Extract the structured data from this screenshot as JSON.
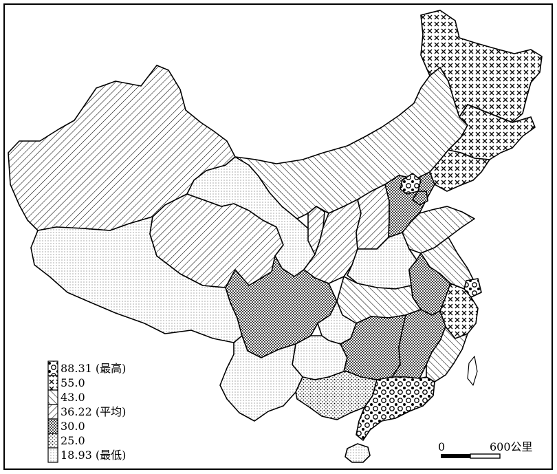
{
  "legend": {
    "items": [
      {
        "value": "88.31",
        "note": "(最高)",
        "pattern": "circles"
      },
      {
        "value": "55.0",
        "note": "",
        "pattern": "cross"
      },
      {
        "value": "43.0",
        "note": "",
        "pattern": "hatch-right"
      },
      {
        "value": "36.22",
        "note": "(平均)",
        "pattern": "hatch-left"
      },
      {
        "value": "30.0",
        "note": "",
        "pattern": "dots-dense"
      },
      {
        "value": "25.0",
        "note": "",
        "pattern": "dots-medium"
      },
      {
        "value": "18.93",
        "note": "(最低)",
        "pattern": "dots-light"
      }
    ]
  },
  "scale_bar": {
    "start": "0",
    "end": "600公里"
  }
}
